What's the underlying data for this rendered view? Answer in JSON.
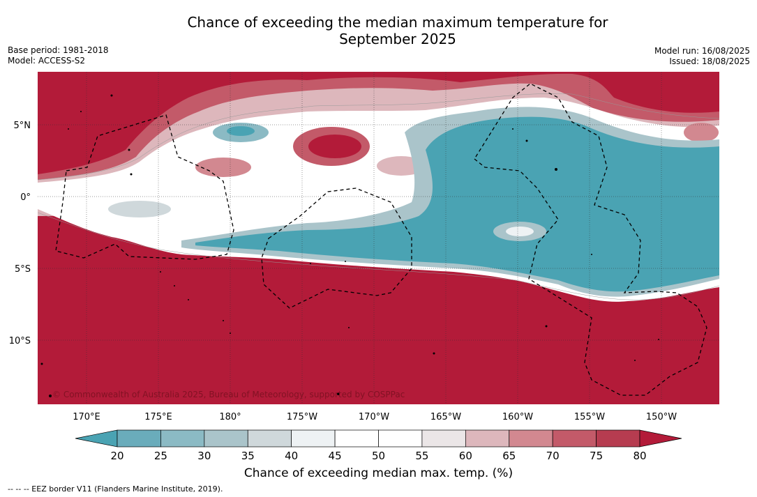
{
  "title_line1": "Chance of exceeding the median maximum temperature for",
  "title_line2": "September 2025",
  "meta_left": {
    "base_period": "Base period: 1981-2018",
    "model": "Model: ACCESS-S2"
  },
  "meta_right": {
    "model_run": "Model run: 16/08/2025",
    "issued": "Issued: 18/08/2025"
  },
  "copyright": "© Commonwealth of Australia 2025, Bureau of Meteorology, supported by COSPPac",
  "lat_labels": [
    "5°N",
    "0°",
    "5°S",
    "10°S"
  ],
  "lon_labels": [
    "170°E",
    "175°E",
    "180°",
    "175°W",
    "170°W",
    "165°W",
    "160°W",
    "155°W",
    "150°W"
  ],
  "legend": {
    "title": "Chance of exceeding median max. temp. (%)",
    "ticks": [
      "20",
      "25",
      "30",
      "35",
      "40",
      "45",
      "50",
      "55",
      "60",
      "65",
      "70",
      "75",
      "80"
    ],
    "colors": [
      "#4aa3b3",
      "#6aacbb",
      "#8bbac4",
      "#aac4ca",
      "#cfd8db",
      "#eef2f4",
      "#ffffff",
      "#ffffff",
      "#ebe6e7",
      "#ddb7bc",
      "#d28890",
      "#c35a69",
      "#b63c50",
      "#b31b39"
    ]
  },
  "colors": {
    "warm": "#b31b39",
    "cool": "#4aa3b3",
    "neutral": "#ffffff"
  },
  "footnote": "--  --  -- EEZ border V11 (Flanders Marine Institute, 2019)."
}
